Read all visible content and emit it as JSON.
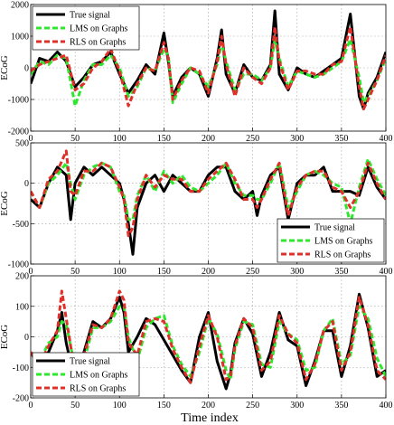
{
  "figure": {
    "xlabel": "Time index"
  },
  "colors": {
    "true_signal": "#000000",
    "lms": "#2ee82e",
    "rls": "#e0302a",
    "grid": "#9a9a9a"
  },
  "chart_data": [
    {
      "type": "line",
      "ylabel": "ECoG",
      "xlim": [
        0,
        400
      ],
      "ylim": [
        -2000,
        2000
      ],
      "xticks": [
        "0",
        "50",
        "100",
        "150",
        "200",
        "250",
        "300",
        "350",
        "400"
      ],
      "yticks": [
        "2000",
        "1000",
        "0",
        "-1000",
        "-2000"
      ],
      "grid": true,
      "legend": "top-left",
      "series": [
        {
          "name": "True signal",
          "style": "solid",
          "x": [
            0,
            10,
            20,
            30,
            40,
            50,
            60,
            70,
            80,
            90,
            100,
            110,
            120,
            130,
            140,
            150,
            155,
            160,
            170,
            180,
            190,
            200,
            210,
            215,
            220,
            230,
            240,
            250,
            260,
            270,
            275,
            280,
            290,
            300,
            310,
            320,
            330,
            340,
            350,
            360,
            370,
            375,
            380,
            390,
            400
          ],
          "y": [
            -500,
            300,
            200,
            500,
            200,
            -600,
            -300,
            100,
            200,
            500,
            -200,
            -800,
            -400,
            100,
            -200,
            1100,
            200,
            -900,
            -300,
            0,
            -200,
            -900,
            300,
            1200,
            -200,
            -800,
            100,
            -300,
            -400,
            100,
            1800,
            -200,
            -700,
            0,
            -200,
            -300,
            -100,
            100,
            300,
            1700,
            -900,
            -1300,
            -800,
            -300,
            500
          ]
        },
        {
          "name": "LMS on Graphs",
          "style": "dashed",
          "x": [
            0,
            10,
            20,
            30,
            40,
            50,
            60,
            70,
            80,
            90,
            100,
            110,
            120,
            130,
            140,
            150,
            155,
            160,
            170,
            180,
            190,
            200,
            210,
            215,
            220,
            230,
            240,
            250,
            260,
            270,
            275,
            280,
            290,
            300,
            310,
            320,
            330,
            340,
            350,
            360,
            370,
            375,
            380,
            390,
            400
          ],
          "y": [
            -200,
            200,
            100,
            400,
            300,
            -1200,
            -400,
            100,
            100,
            400,
            0,
            -900,
            -600,
            0,
            -100,
            600,
            400,
            -1100,
            -500,
            0,
            -200,
            -600,
            100,
            800,
            200,
            -700,
            -200,
            -200,
            -400,
            0,
            900,
            300,
            -600,
            -100,
            -200,
            -300,
            -200,
            0,
            200,
            900,
            -300,
            -1100,
            -900,
            -400,
            300
          ]
        },
        {
          "name": "RLS on Graphs",
          "style": "dashed",
          "x": [
            0,
            10,
            20,
            30,
            40,
            50,
            60,
            70,
            80,
            90,
            100,
            110,
            120,
            130,
            140,
            150,
            155,
            160,
            170,
            180,
            190,
            200,
            210,
            215,
            220,
            230,
            240,
            250,
            260,
            270,
            275,
            280,
            290,
            300,
            310,
            320,
            330,
            340,
            350,
            360,
            370,
            375,
            380,
            390,
            400
          ],
          "y": [
            -100,
            100,
            200,
            300,
            400,
            -700,
            -500,
            0,
            200,
            600,
            -100,
            -1200,
            -500,
            0,
            -100,
            800,
            300,
            -1000,
            -400,
            0,
            -100,
            -800,
            200,
            1000,
            100,
            -900,
            0,
            -300,
            -500,
            0,
            1300,
            200,
            -700,
            -100,
            -100,
            -200,
            -200,
            100,
            200,
            1300,
            -600,
            -1300,
            -1000,
            -400,
            400
          ]
        }
      ]
    },
    {
      "type": "line",
      "ylabel": "ECoG",
      "xlim": [
        0,
        400
      ],
      "ylim": [
        -1000,
        500
      ],
      "xticks": [
        "0",
        "50",
        "100",
        "150",
        "200",
        "250",
        "300",
        "350",
        "400"
      ],
      "yticks": [
        "500",
        "0",
        "-500",
        "-1000"
      ],
      "grid": true,
      "legend": "bottom-right",
      "series": [
        {
          "name": "True signal",
          "style": "solid",
          "x": [
            0,
            10,
            20,
            30,
            40,
            45,
            50,
            60,
            70,
            80,
            90,
            100,
            105,
            110,
            115,
            120,
            130,
            140,
            150,
            160,
            170,
            180,
            190,
            200,
            210,
            220,
            230,
            240,
            250,
            255,
            260,
            270,
            280,
            290,
            300,
            310,
            320,
            330,
            340,
            350,
            360,
            370,
            380,
            390,
            400
          ],
          "y": [
            -200,
            -300,
            0,
            200,
            100,
            -450,
            0,
            200,
            100,
            200,
            100,
            0,
            -200,
            -500,
            -880,
            -300,
            0,
            100,
            -100,
            100,
            0,
            -100,
            -100,
            100,
            200,
            200,
            -100,
            -200,
            -100,
            -400,
            -150,
            100,
            200,
            -450,
            0,
            100,
            100,
            200,
            -100,
            -100,
            -100,
            -150,
            200,
            -50,
            -200
          ]
        },
        {
          "name": "LMS on Graphs",
          "style": "dashed",
          "x": [
            0,
            10,
            20,
            30,
            40,
            45,
            50,
            60,
            70,
            80,
            90,
            100,
            105,
            110,
            115,
            120,
            130,
            140,
            150,
            160,
            170,
            180,
            190,
            200,
            210,
            220,
            230,
            240,
            250,
            255,
            260,
            270,
            280,
            290,
            300,
            310,
            320,
            330,
            340,
            350,
            360,
            370,
            380,
            390,
            400
          ],
          "y": [
            -100,
            -300,
            0,
            100,
            250,
            0,
            -200,
            100,
            200,
            250,
            200,
            -100,
            -150,
            -450,
            -450,
            -150,
            100,
            -100,
            150,
            0,
            100,
            -50,
            -100,
            0,
            100,
            250,
            0,
            -150,
            -150,
            -200,
            -200,
            0,
            250,
            -300,
            -100,
            100,
            150,
            100,
            0,
            -50,
            -500,
            -50,
            300,
            50,
            -150
          ]
        },
        {
          "name": "RLS on Graphs",
          "style": "dashed",
          "x": [
            0,
            10,
            20,
            30,
            40,
            45,
            50,
            60,
            70,
            80,
            90,
            100,
            105,
            110,
            115,
            120,
            130,
            140,
            150,
            160,
            170,
            180,
            190,
            200,
            210,
            220,
            230,
            240,
            250,
            255,
            260,
            270,
            280,
            290,
            300,
            310,
            320,
            330,
            340,
            350,
            360,
            370,
            380,
            390,
            400
          ],
          "y": [
            -100,
            -300,
            50,
            150,
            400,
            -100,
            -150,
            150,
            150,
            250,
            200,
            -50,
            -200,
            -650,
            -550,
            -200,
            100,
            -50,
            100,
            50,
            50,
            -100,
            -100,
            50,
            150,
            250,
            50,
            -200,
            -200,
            -300,
            -200,
            50,
            250,
            -400,
            -50,
            100,
            150,
            150,
            -50,
            -100,
            -300,
            -100,
            250,
            0,
            -200
          ]
        }
      ]
    },
    {
      "type": "line",
      "ylabel": "ECoG",
      "xlim": [
        0,
        400
      ],
      "ylim": [
        -200,
        200
      ],
      "xticks": [
        "0",
        "50",
        "100",
        "150",
        "200",
        "250",
        "300",
        "350",
        "400"
      ],
      "yticks": [
        "200",
        "100",
        "0",
        "-100",
        "-200"
      ],
      "grid": true,
      "legend": "bottom-left",
      "series": [
        {
          "name": "True signal",
          "style": "solid",
          "x": [
            0,
            10,
            20,
            30,
            35,
            40,
            50,
            60,
            70,
            80,
            90,
            100,
            105,
            110,
            120,
            130,
            140,
            150,
            160,
            170,
            180,
            190,
            200,
            210,
            220,
            225,
            230,
            240,
            250,
            260,
            270,
            280,
            290,
            300,
            310,
            320,
            330,
            340,
            350,
            360,
            370,
            380,
            390,
            400
          ],
          "y": [
            -50,
            -100,
            -50,
            20,
            80,
            -20,
            -150,
            -50,
            50,
            30,
            60,
            130,
            80,
            -50,
            0,
            60,
            40,
            -10,
            -60,
            -110,
            -150,
            0,
            80,
            -80,
            -170,
            -120,
            -20,
            60,
            10,
            -130,
            -50,
            80,
            -10,
            -30,
            -160,
            -80,
            20,
            20,
            -130,
            -30,
            140,
            30,
            -130,
            -110
          ]
        },
        {
          "name": "LMS on Graphs",
          "style": "dashed",
          "x": [
            0,
            10,
            20,
            30,
            35,
            40,
            50,
            60,
            70,
            80,
            90,
            100,
            105,
            110,
            120,
            130,
            140,
            150,
            160,
            170,
            180,
            190,
            200,
            210,
            220,
            225,
            230,
            240,
            250,
            260,
            270,
            280,
            290,
            300,
            310,
            320,
            330,
            340,
            350,
            360,
            370,
            380,
            390,
            400
          ],
          "y": [
            -50,
            -80,
            -20,
            0,
            50,
            40,
            -100,
            -80,
            30,
            30,
            50,
            100,
            100,
            0,
            -80,
            30,
            60,
            70,
            -30,
            -90,
            -130,
            -50,
            60,
            10,
            -110,
            -140,
            -40,
            50,
            40,
            -90,
            -100,
            50,
            10,
            -10,
            -110,
            -100,
            20,
            60,
            -90,
            -60,
            100,
            60,
            -70,
            -130
          ]
        },
        {
          "name": "RLS on Graphs",
          "style": "dashed",
          "x": [
            0,
            10,
            20,
            30,
            35,
            40,
            50,
            60,
            70,
            80,
            90,
            100,
            105,
            110,
            120,
            130,
            140,
            150,
            160,
            170,
            180,
            190,
            200,
            210,
            220,
            225,
            230,
            240,
            250,
            260,
            270,
            280,
            290,
            300,
            310,
            320,
            330,
            340,
            350,
            360,
            370,
            380,
            390,
            400
          ],
          "y": [
            -50,
            -90,
            -30,
            20,
            150,
            60,
            -120,
            -60,
            40,
            30,
            60,
            150,
            120,
            -20,
            -60,
            50,
            60,
            50,
            -40,
            -100,
            -150,
            -30,
            70,
            0,
            -140,
            -130,
            -30,
            60,
            30,
            -110,
            -80,
            70,
            10,
            -20,
            -140,
            -90,
            20,
            50,
            -110,
            -50,
            130,
            40,
            -110,
            -140
          ]
        }
      ]
    }
  ]
}
